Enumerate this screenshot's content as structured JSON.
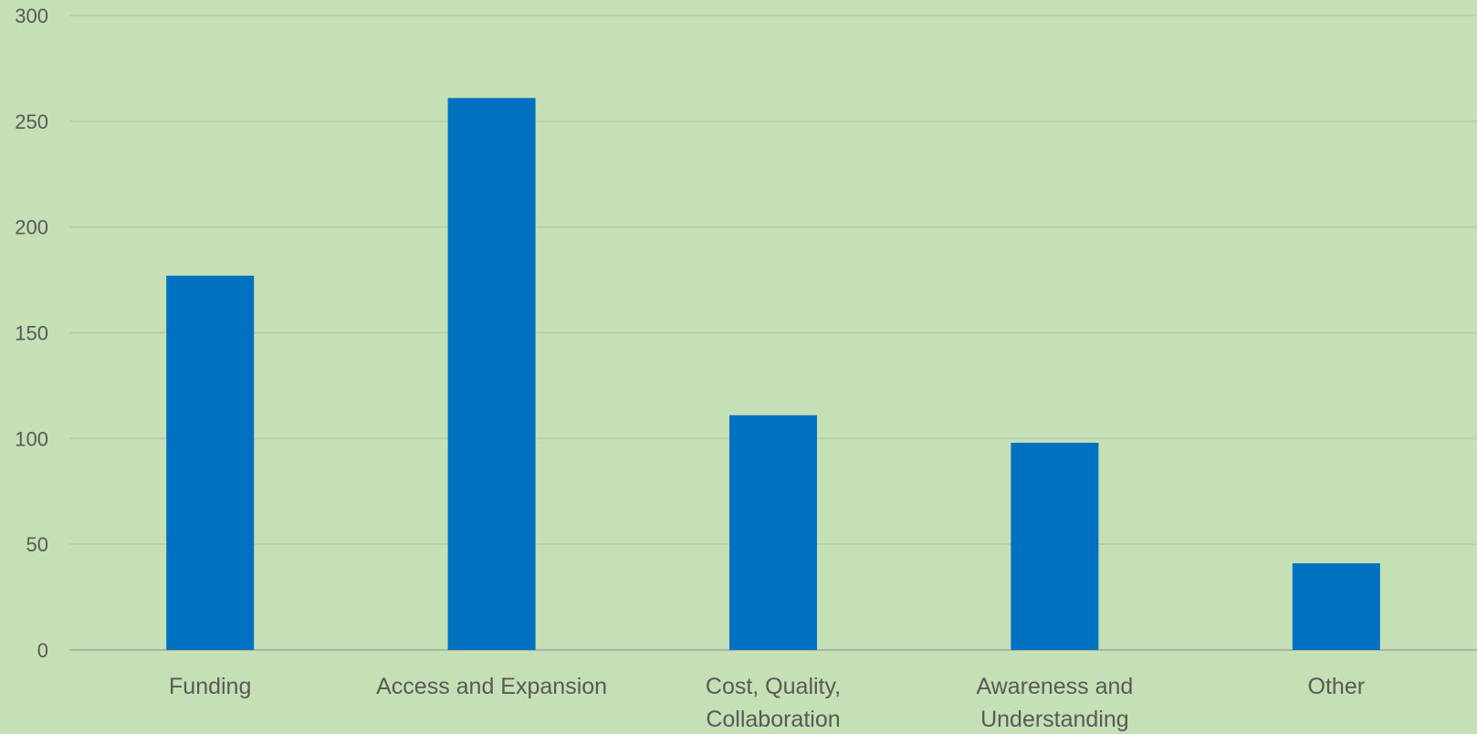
{
  "chart_data": {
    "type": "bar",
    "title": "",
    "xlabel": "",
    "ylabel": "",
    "categories": [
      [
        "Funding"
      ],
      [
        "Access and Expansion"
      ],
      [
        "Cost, Quality,",
        "Collaboration"
      ],
      [
        "Awareness and",
        "Understanding"
      ],
      [
        "Other"
      ]
    ],
    "values": [
      177,
      261,
      111,
      98,
      41
    ],
    "ylim": [
      0,
      300
    ],
    "yticks": [
      0,
      50,
      100,
      150,
      200,
      250,
      300
    ],
    "grid": true,
    "legend": "none"
  },
  "colors": {
    "background": "#c5e0b4",
    "bar": "#0070c0",
    "gridline": "#b9c7b0",
    "baseline": "#a9b5a2",
    "text": "#595959"
  }
}
